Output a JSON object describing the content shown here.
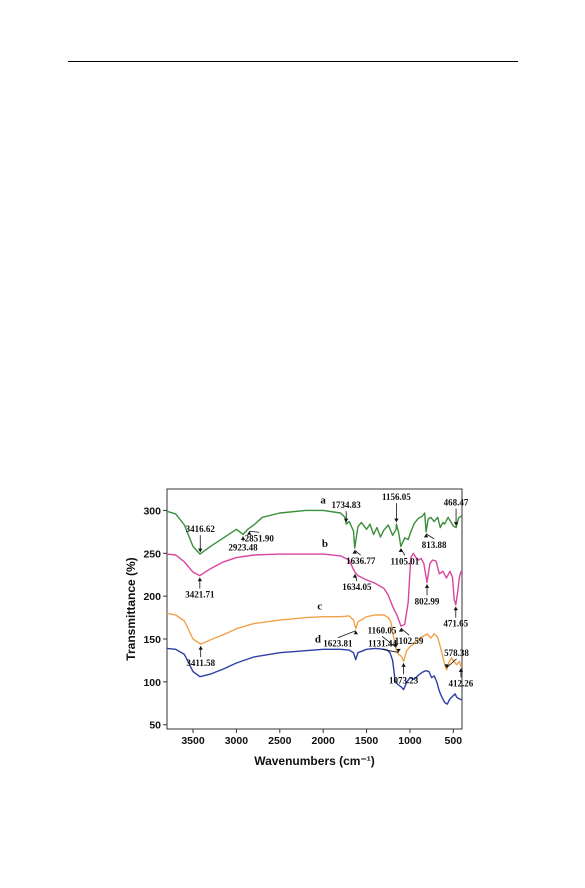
{
  "page": {
    "header_rule": true
  },
  "chart_data": {
    "type": "line",
    "title": "",
    "xlabel": "Wavenumbers (cm⁻¹)",
    "ylabel": "Transmittance (%)",
    "xlim": [
      3800,
      400
    ],
    "ylim": [
      45,
      325
    ],
    "x_reversed": true,
    "grid": false,
    "legend": "none",
    "x_ticks": [
      3500,
      3000,
      2500,
      2000,
      1500,
      1000,
      500
    ],
    "y_ticks": [
      50,
      100,
      150,
      200,
      250,
      300
    ],
    "series": [
      {
        "name": "a",
        "color": "#3a8f3a",
        "x": [
          3800,
          3700,
          3600,
          3500,
          3420,
          3300,
          3150,
          3000,
          2923,
          2870,
          2800,
          2700,
          2500,
          2200,
          2000,
          1800,
          1750,
          1735,
          1700,
          1650,
          1637,
          1600,
          1560,
          1500,
          1460,
          1420,
          1380,
          1340,
          1300,
          1250,
          1200,
          1160,
          1156,
          1130,
          1105,
          1060,
          1020,
          990,
          950,
          900,
          860,
          830,
          814,
          790,
          760,
          720,
          680,
          650,
          620,
          600,
          560,
          530,
          500,
          468,
          440,
          400
        ],
        "y": [
          299,
          296,
          283,
          258,
          249,
          258,
          268,
          278,
          272,
          278,
          283,
          292,
          297,
          300,
          300,
          297,
          292,
          284,
          287,
          276,
          256,
          281,
          286,
          278,
          284,
          272,
          280,
          269,
          277,
          283,
          271,
          278,
          284,
          274,
          258,
          268,
          266,
          275,
          285,
          291,
          293,
          297,
          275,
          290,
          292,
          287,
          292,
          280,
          286,
          284,
          292,
          287,
          282,
          280,
          291,
          294
        ]
      },
      {
        "name": "b",
        "color": "#d8469e",
        "x": [
          3800,
          3700,
          3600,
          3500,
          3422,
          3300,
          3150,
          3000,
          2800,
          2500,
          2000,
          1800,
          1700,
          1660,
          1634,
          1600,
          1500,
          1400,
          1300,
          1250,
          1200,
          1150,
          1103,
          1060,
          1020,
          990,
          960,
          930,
          900,
          870,
          840,
          803,
          770,
          740,
          700,
          660,
          620,
          580,
          540,
          510,
          490,
          472,
          450,
          430,
          410,
          400
        ],
        "y": [
          249,
          248,
          240,
          228,
          224,
          232,
          240,
          245,
          248,
          249,
          249,
          247,
          242,
          233,
          228,
          224,
          219,
          215,
          209,
          201,
          188,
          178,
          165,
          167,
          193,
          245,
          250,
          245,
          242,
          244,
          238,
          216,
          238,
          242,
          241,
          226,
          229,
          221,
          229,
          222,
          196,
          190,
          205,
          222,
          229,
          227
        ]
      },
      {
        "name": "c",
        "color": "#f0a24a",
        "x": [
          3800,
          3700,
          3600,
          3500,
          3412,
          3300,
          3150,
          3000,
          2800,
          2500,
          2200,
          2000,
          1800,
          1700,
          1650,
          1624,
          1600,
          1500,
          1400,
          1300,
          1250,
          1220,
          1200,
          1160,
          1131,
          1100,
          1073,
          1040,
          1000,
          950,
          900,
          850,
          800,
          760,
          720,
          680,
          640,
          600,
          578,
          550,
          520,
          490,
          460,
          430,
          412,
          400
        ],
        "y": [
          180,
          178,
          171,
          150,
          144,
          149,
          155,
          162,
          168,
          172,
          175,
          176,
          176,
          177,
          172,
          162,
          170,
          176,
          178,
          178,
          175,
          170,
          158,
          138,
          132,
          130,
          124,
          136,
          141,
          145,
          150,
          153,
          156,
          151,
          156,
          152,
          137,
          121,
          114,
          123,
          128,
          123,
          120,
          124,
          118,
          119
        ]
      },
      {
        "name": "d",
        "color": "#2f3ea6",
        "x": [
          3800,
          3700,
          3600,
          3500,
          3420,
          3300,
          3150,
          3000,
          2800,
          2500,
          2000,
          1800,
          1700,
          1650,
          1625,
          1600,
          1500,
          1400,
          1300,
          1260,
          1230,
          1200,
          1170,
          1140,
          1100,
          1073,
          1040,
          1000,
          950,
          900,
          860,
          820,
          780,
          750,
          720,
          690,
          660,
          630,
          600,
          570,
          540,
          510,
          480,
          460,
          430,
          400
        ],
        "y": [
          139,
          138,
          132,
          112,
          106,
          109,
          115,
          122,
          129,
          134,
          138,
          138,
          137,
          134,
          126,
          134,
          138,
          139,
          138,
          137,
          134,
          125,
          101,
          97,
          94,
          91,
          99,
          105,
          103,
          108,
          111,
          113,
          112,
          105,
          107,
          100,
          89,
          82,
          76,
          74,
          80,
          83,
          86,
          82,
          80,
          79
        ]
      }
    ],
    "series_labels": [
      "a",
      "b",
      "c",
      "d"
    ],
    "annotations": [
      {
        "text": "3416.62",
        "x": 3416.62,
        "y": 249
      },
      {
        "text": "2923.48",
        "x": 2923.48,
        "y": 272
      },
      {
        "text": "2851.90",
        "x": 2851.9,
        "y": 278
      },
      {
        "text": "1734.83",
        "x": 1734.83,
        "y": 284
      },
      {
        "text": "1636.77",
        "x": 1636.77,
        "y": 256
      },
      {
        "text": "1156.05",
        "x": 1156.05,
        "y": 284
      },
      {
        "text": "1105.01",
        "x": 1105.01,
        "y": 258
      },
      {
        "text": "813.88",
        "x": 813.88,
        "y": 275
      },
      {
        "text": "468.47",
        "x": 468.47,
        "y": 280
      },
      {
        "text": "3421.71",
        "x": 3421.71,
        "y": 224
      },
      {
        "text": "1634.05",
        "x": 1634.05,
        "y": 228
      },
      {
        "text": "1102.59",
        "x": 1102.59,
        "y": 165
      },
      {
        "text": "802.99",
        "x": 802.99,
        "y": 216
      },
      {
        "text": "471.65",
        "x": 471.65,
        "y": 190
      },
      {
        "text": "3411.58",
        "x": 3411.58,
        "y": 144
      },
      {
        "text": "1623.81",
        "x": 1623.81,
        "y": 162
      },
      {
        "text": "1160.05",
        "x": 1160.05,
        "y": 138
      },
      {
        "text": "1131.44",
        "x": 1131.44,
        "y": 132
      },
      {
        "text": "1073.23",
        "x": 1073.23,
        "y": 124
      },
      {
        "text": "578.38",
        "x": 578.38,
        "y": 114
      },
      {
        "text": "412.26",
        "x": 412.26,
        "y": 118
      }
    ]
  }
}
